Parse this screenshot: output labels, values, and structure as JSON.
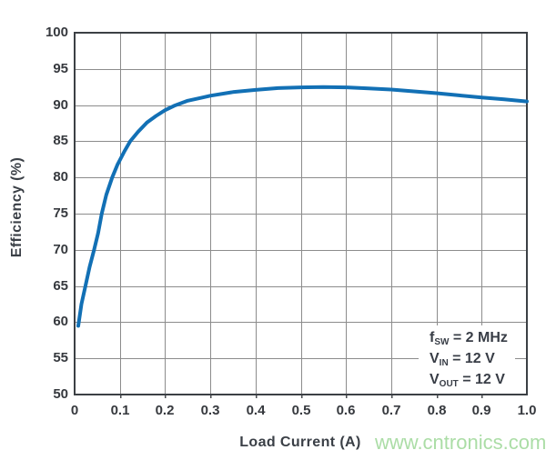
{
  "chart": {
    "y_axis": {
      "label": "Efficiency (%)",
      "ticks": [
        100,
        95,
        90,
        85,
        80,
        75,
        70,
        65,
        60,
        55,
        50
      ]
    },
    "x_axis": {
      "label": "Load Current (A)",
      "ticks": [
        "0",
        "0.1",
        "0.2",
        "0.3",
        "0.4",
        "0.5",
        "0.6",
        "0.7",
        "0.8",
        "0.9",
        "1.0"
      ]
    },
    "annotation": {
      "lines": [
        {
          "base": "f",
          "sub": "SW",
          "rest": " = 2 MHz"
        },
        {
          "base": "V",
          "sub": "IN",
          "rest": " = 12 V"
        },
        {
          "base": "V",
          "sub": "OUT",
          "rest": " = 12 V"
        }
      ]
    },
    "colors": {
      "curve": "#1270b5",
      "grid": "#8c8c8c",
      "border": "#3c4045",
      "tick": "#4a4d50",
      "text": "#3a3f46",
      "watermark": "#abdda6"
    }
  },
  "watermark": {
    "text": "www.cntronics.com"
  },
  "chart_data": {
    "type": "line",
    "title": "",
    "xlabel": "Load Current (A)",
    "ylabel": "Efficiency (%)",
    "xlim": [
      0,
      1.0
    ],
    "ylim": [
      50,
      100
    ],
    "x_ticks": [
      0,
      0.1,
      0.2,
      0.3,
      0.4,
      0.5,
      0.6,
      0.7,
      0.8,
      0.9,
      1.0
    ],
    "y_ticks": [
      50,
      55,
      60,
      65,
      70,
      75,
      80,
      85,
      90,
      95,
      100
    ],
    "grid": true,
    "legend": "none",
    "annotations": [
      "fSW = 2 MHz",
      "VIN = 12 V",
      "VOUT = 12 V"
    ],
    "series": [
      {
        "name": "Efficiency",
        "x": [
          0.008,
          0.015,
          0.024,
          0.033,
          0.043,
          0.052,
          0.06,
          0.07,
          0.083,
          0.095,
          0.11,
          0.123,
          0.14,
          0.16,
          0.18,
          0.2,
          0.22,
          0.25,
          0.28,
          0.3,
          0.35,
          0.4,
          0.45,
          0.5,
          0.55,
          0.6,
          0.65,
          0.7,
          0.75,
          0.8,
          0.85,
          0.9,
          0.95,
          1.0
        ],
        "y": [
          59.5,
          62.5,
          65.0,
          67.6,
          70.0,
          72.3,
          75.0,
          77.6,
          80.0,
          81.8,
          83.6,
          85.0,
          86.3,
          87.6,
          88.5,
          89.3,
          89.9,
          90.6,
          91.0,
          91.3,
          91.8,
          92.1,
          92.35,
          92.45,
          92.5,
          92.45,
          92.3,
          92.15,
          91.9,
          91.65,
          91.35,
          91.05,
          90.8,
          90.5
        ]
      }
    ]
  }
}
